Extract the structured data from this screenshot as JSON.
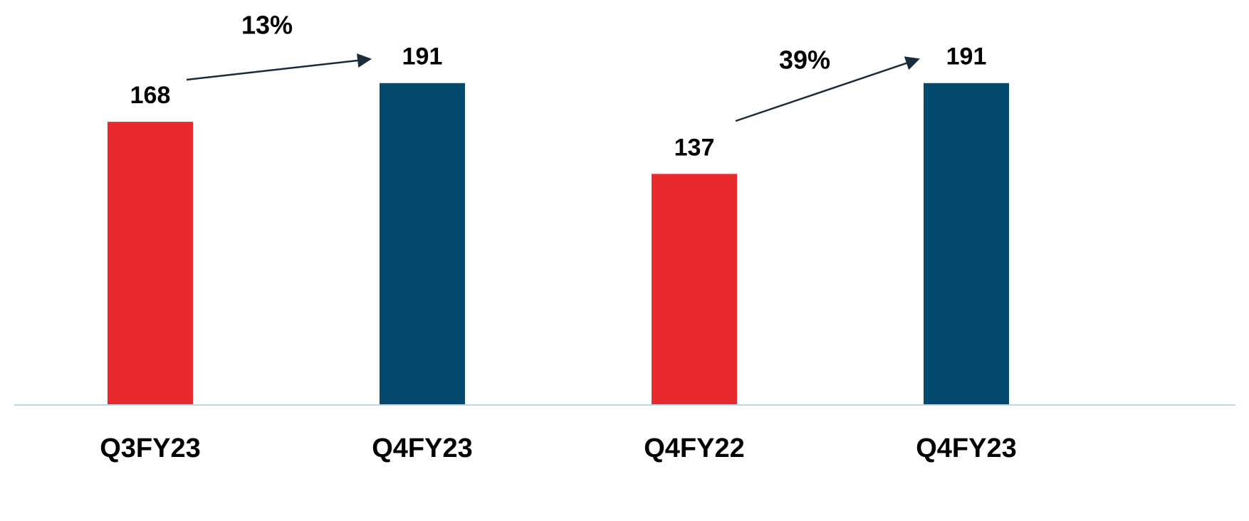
{
  "chart_data": {
    "type": "bar",
    "categories": [
      "Q3FY23",
      "Q4FY23",
      "Q4FY22",
      "Q4FY23"
    ],
    "values": [
      168,
      191,
      137,
      191
    ],
    "colors": [
      "#e8292e",
      "#034a6e",
      "#e8292e",
      "#034a6e"
    ],
    "ylim": [
      0,
      240
    ],
    "annotations": [
      "13%",
      "39%"
    ]
  }
}
